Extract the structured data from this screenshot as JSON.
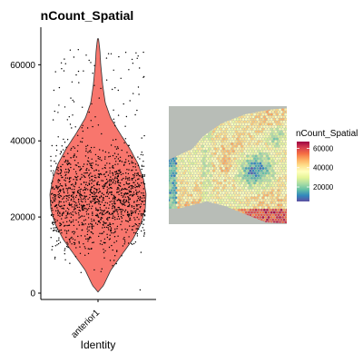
{
  "chart_data": [
    {
      "type": "violin",
      "title": "nCount_Spatial",
      "xlabel": "Identity",
      "ylabel": "",
      "categories": [
        "anterior1"
      ],
      "ylim": [
        0,
        67000
      ],
      "yticks": [
        0,
        20000,
        40000,
        60000
      ],
      "violin": {
        "fill": "#F8766D",
        "outline": "#333333",
        "min": 300,
        "max": 67000,
        "median": 25000,
        "points_color": "#000000",
        "approx_point_count": 1400
      },
      "grid": false
    },
    {
      "type": "spatial-heatmap",
      "legend_title": "nCount_Spatial",
      "legend_ticks": [
        20000,
        40000,
        60000
      ],
      "legend_range": [
        5000,
        67000
      ],
      "legend_placement": "right",
      "palette": [
        "#5E4FA2",
        "#3288BD",
        "#66C2A5",
        "#ABDDA4",
        "#E6F598",
        "#FFFFBF",
        "#FEE08B",
        "#FDAE61",
        "#F46D43",
        "#D53E4F",
        "#9E0142"
      ],
      "background_color": "#B8BDB7"
    }
  ]
}
